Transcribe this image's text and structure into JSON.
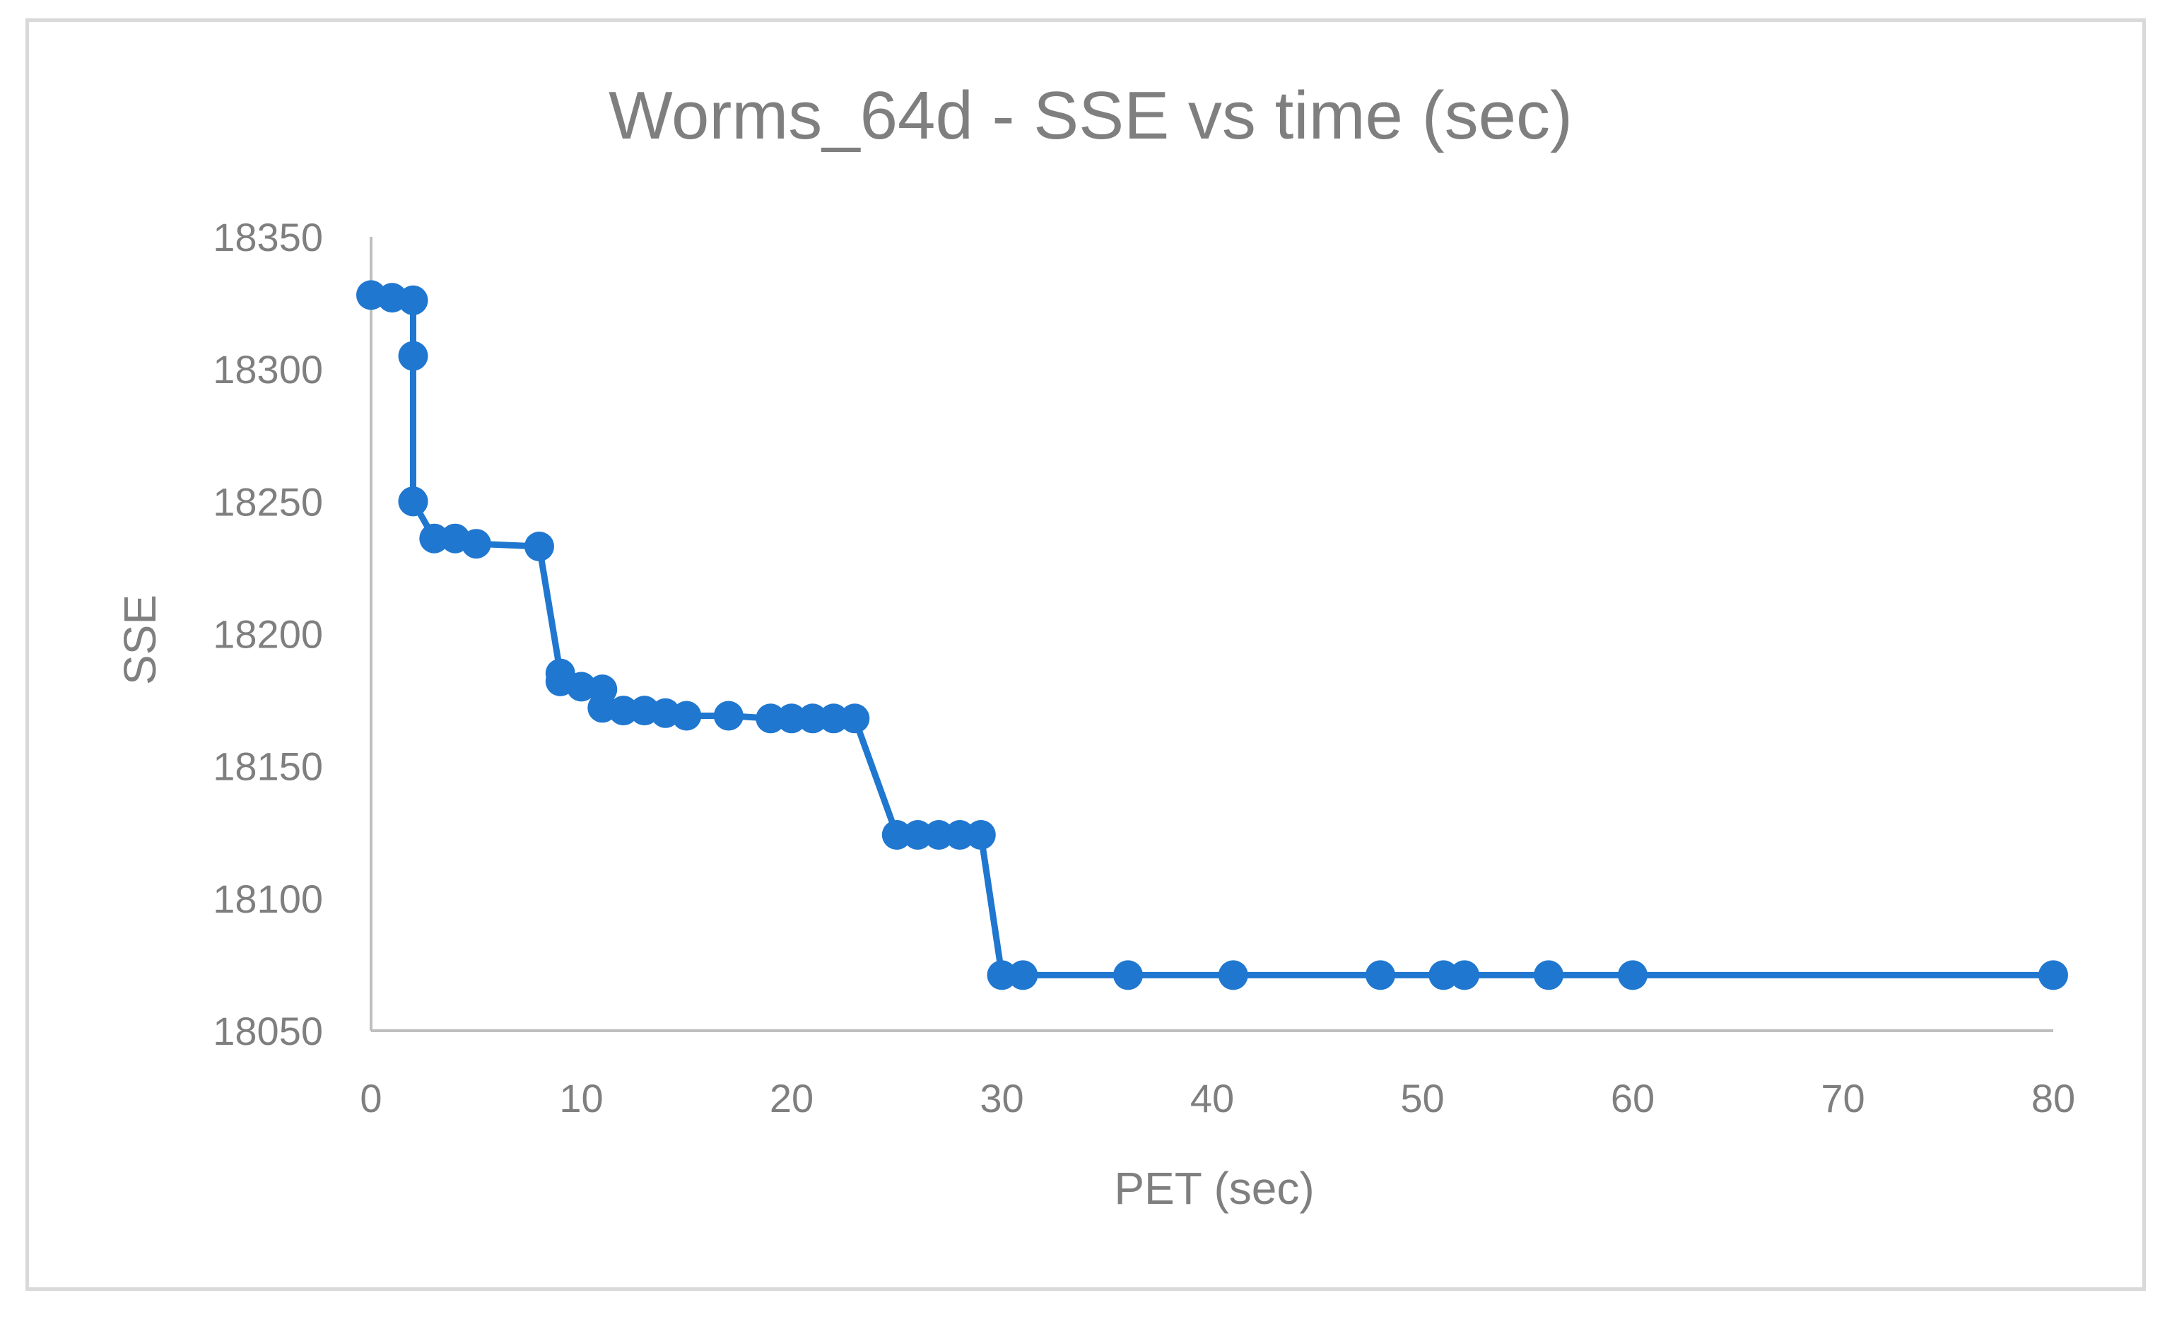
{
  "chart_data": {
    "type": "line",
    "title": "Worms_64d - SSE vs time (sec)",
    "xlabel": "PET (sec)",
    "ylabel": "SSE",
    "xlim": [
      0,
      80
    ],
    "ylim": [
      18050,
      18350
    ],
    "x_ticks": [
      0,
      10,
      20,
      30,
      40,
      50,
      60,
      70,
      80
    ],
    "y_ticks": [
      18050,
      18100,
      18150,
      18200,
      18250,
      18300,
      18350
    ],
    "x_tick_labels": [
      "0",
      "10",
      "20",
      "30",
      "40",
      "50",
      "60",
      "70",
      "80"
    ],
    "y_tick_labels": [
      "18050",
      "18100",
      "18150",
      "18200",
      "18250",
      "18300",
      "18350"
    ],
    "grid": false,
    "legend": "none",
    "series": [
      {
        "name": "SSE",
        "color": "#1f77d0",
        "x": [
          0,
          1,
          2,
          2,
          2,
          2,
          3,
          4,
          5,
          8,
          9,
          9,
          10,
          11,
          11,
          12,
          13,
          14,
          15,
          17,
          19,
          20,
          21,
          22,
          23,
          25,
          26,
          27,
          28,
          29,
          30,
          31,
          36,
          41,
          48,
          51,
          52,
          56,
          60,
          80
        ],
        "y": [
          18328,
          18327,
          18326,
          18305,
          18250,
          18250,
          18236,
          18236,
          18234,
          18233,
          18185,
          18182,
          18180,
          18179,
          18172,
          18171,
          18171,
          18170,
          18169,
          18169,
          18168,
          18168,
          18168,
          18168,
          18168,
          18124,
          18124,
          18124,
          18124,
          18124,
          18071,
          18071,
          18071,
          18071,
          18071,
          18071,
          18071,
          18071,
          18071,
          18071
        ]
      }
    ]
  }
}
